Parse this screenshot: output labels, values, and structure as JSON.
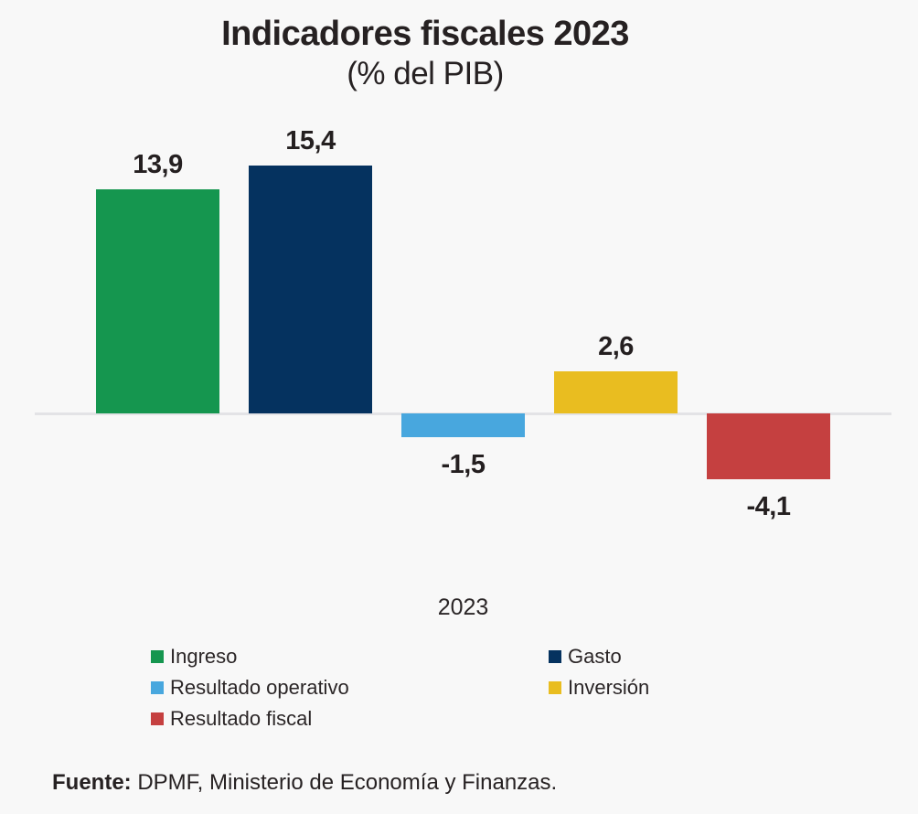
{
  "title": "Indicadores fiscales 2023",
  "subtitle": "(% del PIB)",
  "category_label": "2023",
  "source": {
    "prefix": "Fuente:",
    "text": " DPMF, Ministerio de Economía y Finanzas."
  },
  "colors": {
    "background": "#f8f8f8",
    "text": "#241f20",
    "baseline": "#e3e3e6"
  },
  "chart_data": {
    "type": "bar",
    "title": "Indicadores fiscales 2023",
    "subtitle": "(% del PIB)",
    "categories": [
      "2023"
    ],
    "xlabel": "2023",
    "ylabel": "% del PIB",
    "baseline": 0,
    "grid": false,
    "axis_ticks_visible": false,
    "legend_position": "bottom",
    "series": [
      {
        "name": "Ingreso",
        "slug": "ingreso",
        "value": 13.9,
        "label": "13,9",
        "color": "#15964f"
      },
      {
        "name": "Gasto",
        "slug": "gasto",
        "value": 15.4,
        "label": "15,4",
        "color": "#05325f"
      },
      {
        "name": "Resultado operativo",
        "slug": "resultado-operativo",
        "value": -1.5,
        "label": "-1,5",
        "color": "#48a7de"
      },
      {
        "name": "Inversión",
        "slug": "inversion",
        "value": 2.6,
        "label": "2,6",
        "color": "#e9bd20"
      },
      {
        "name": "Resultado fiscal",
        "slug": "resultado-fiscal",
        "value": -4.1,
        "label": "-4,1",
        "color": "#c54040"
      }
    ]
  }
}
